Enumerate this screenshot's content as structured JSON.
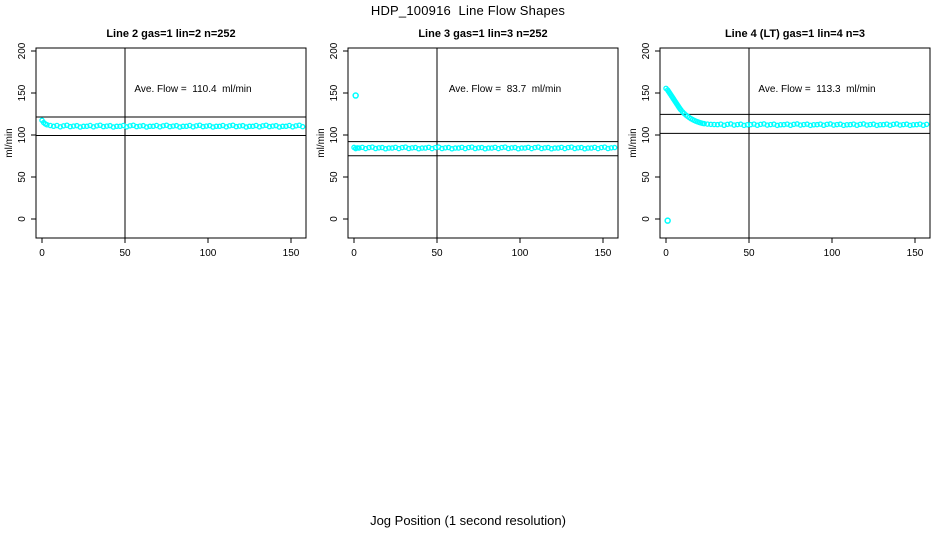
{
  "figure": {
    "title": "HDP_100916  Line Flow Shapes",
    "xlabel": "Jog Position (1 second resolution)",
    "background_color": "#FFFFFF",
    "point_color": "#00FFFF",
    "line_color": "#000000"
  },
  "chart_data": [
    {
      "type": "scatter",
      "title": "Line 2 gas=1 lin=2 n=252",
      "annotation": "Ave. Flow =  110.4  ml/min",
      "ave_flow_ml_min": 110.4,
      "n": 252,
      "ylabel": "ml/min",
      "xticks": [
        0,
        50,
        100,
        150
      ],
      "yticks": [
        0,
        50,
        100,
        150,
        200
      ],
      "xlim": [
        -4,
        159
      ],
      "ylim": [
        -23,
        204
      ],
      "grid": false,
      "vline_x": 50,
      "hlines": [
        121.4,
        99.4
      ],
      "marker": "open-circle",
      "outliers": [],
      "points": [
        [
          0,
          117.5
        ],
        [
          1,
          114.8
        ],
        [
          2,
          113.2
        ],
        [
          3,
          112.2
        ],
        [
          5,
          111.3
        ],
        [
          7,
          110.4
        ],
        [
          9,
          111.3
        ],
        [
          11,
          109.7
        ],
        [
          13,
          110.9
        ],
        [
          15,
          111.6
        ],
        [
          17,
          109.9
        ],
        [
          19,
          110.6
        ],
        [
          21,
          111.1
        ],
        [
          23,
          109.5
        ],
        [
          25,
          110.4
        ],
        [
          27,
          110.4
        ],
        [
          29,
          111.3
        ],
        [
          31,
          109.7
        ],
        [
          33,
          110.9
        ],
        [
          35,
          111.6
        ],
        [
          37,
          109.9
        ],
        [
          39,
          110.6
        ],
        [
          41,
          111.1
        ],
        [
          43,
          109.5
        ],
        [
          45,
          110.4
        ],
        [
          47,
          110.4
        ],
        [
          49,
          111.3
        ],
        [
          51,
          109.7
        ],
        [
          53,
          110.9
        ],
        [
          55,
          111.6
        ],
        [
          57,
          109.9
        ],
        [
          59,
          110.6
        ],
        [
          61,
          111.1
        ],
        [
          63,
          109.5
        ],
        [
          65,
          110.4
        ],
        [
          67,
          110.4
        ],
        [
          69,
          111.3
        ],
        [
          71,
          109.7
        ],
        [
          73,
          110.9
        ],
        [
          75,
          111.6
        ],
        [
          77,
          109.9
        ],
        [
          79,
          110.6
        ],
        [
          81,
          111.1
        ],
        [
          83,
          109.5
        ],
        [
          85,
          110.4
        ],
        [
          87,
          110.4
        ],
        [
          89,
          111.3
        ],
        [
          91,
          109.7
        ],
        [
          93,
          110.9
        ],
        [
          95,
          111.6
        ],
        [
          97,
          109.9
        ],
        [
          99,
          110.6
        ],
        [
          101,
          111.1
        ],
        [
          103,
          109.5
        ],
        [
          105,
          110.4
        ],
        [
          107,
          110.4
        ],
        [
          109,
          111.3
        ],
        [
          111,
          109.7
        ],
        [
          113,
          110.9
        ],
        [
          115,
          111.6
        ],
        [
          117,
          109.9
        ],
        [
          119,
          110.6
        ],
        [
          121,
          111.1
        ],
        [
          123,
          109.5
        ],
        [
          125,
          110.4
        ],
        [
          127,
          110.4
        ],
        [
          129,
          111.3
        ],
        [
          131,
          109.7
        ],
        [
          133,
          110.9
        ],
        [
          135,
          111.6
        ],
        [
          137,
          109.9
        ],
        [
          139,
          110.6
        ],
        [
          141,
          111.1
        ],
        [
          143,
          109.5
        ],
        [
          145,
          110.4
        ],
        [
          147,
          110.4
        ],
        [
          149,
          111.3
        ],
        [
          151,
          109.7
        ],
        [
          153,
          110.9
        ],
        [
          155,
          111.6
        ],
        [
          157,
          109.9
        ]
      ]
    },
    {
      "type": "scatter",
      "title": "Line 3 gas=1 lin=3 n=252",
      "annotation": "Ave. Flow =  83.7  ml/min",
      "ave_flow_ml_min": 83.7,
      "n": 252,
      "ylabel": "ml/min",
      "xticks": [
        0,
        50,
        100,
        150
      ],
      "yticks": [
        0,
        50,
        100,
        150,
        200
      ],
      "xlim": [
        -4,
        159
      ],
      "ylim": [
        -23,
        204
      ],
      "grid": false,
      "vline_x": 50,
      "hlines": [
        92.1,
        75.3
      ],
      "marker": "open-circle",
      "outliers": [
        [
          1,
          147
        ]
      ],
      "points": [
        [
          0,
          85.2
        ],
        [
          1,
          83.8
        ],
        [
          2,
          84.6
        ],
        [
          3,
          84.5
        ],
        [
          5,
          85.3
        ],
        [
          7,
          83.8
        ],
        [
          9,
          85.0
        ],
        [
          11,
          85.6
        ],
        [
          13,
          83.9
        ],
        [
          15,
          84.7
        ],
        [
          17,
          85.1
        ],
        [
          19,
          83.6
        ],
        [
          21,
          84.5
        ],
        [
          23,
          84.5
        ],
        [
          25,
          85.3
        ],
        [
          27,
          83.8
        ],
        [
          29,
          85.0
        ],
        [
          31,
          85.6
        ],
        [
          33,
          83.9
        ],
        [
          35,
          84.7
        ],
        [
          37,
          85.1
        ],
        [
          39,
          83.6
        ],
        [
          41,
          84.5
        ],
        [
          43,
          84.5
        ],
        [
          45,
          85.3
        ],
        [
          47,
          83.8
        ],
        [
          49,
          85.0
        ],
        [
          51,
          85.6
        ],
        [
          53,
          83.9
        ],
        [
          55,
          84.7
        ],
        [
          57,
          85.1
        ],
        [
          59,
          83.6
        ],
        [
          61,
          84.5
        ],
        [
          63,
          84.5
        ],
        [
          65,
          85.3
        ],
        [
          67,
          83.8
        ],
        [
          69,
          85.0
        ],
        [
          71,
          85.6
        ],
        [
          73,
          83.9
        ],
        [
          75,
          84.7
        ],
        [
          77,
          85.1
        ],
        [
          79,
          83.6
        ],
        [
          81,
          84.5
        ],
        [
          83,
          84.5
        ],
        [
          85,
          85.3
        ],
        [
          87,
          83.8
        ],
        [
          89,
          85.0
        ],
        [
          91,
          85.6
        ],
        [
          93,
          83.9
        ],
        [
          95,
          84.7
        ],
        [
          97,
          85.1
        ],
        [
          99,
          83.6
        ],
        [
          101,
          84.5
        ],
        [
          103,
          84.5
        ],
        [
          105,
          85.3
        ],
        [
          107,
          83.8
        ],
        [
          109,
          85.0
        ],
        [
          111,
          85.6
        ],
        [
          113,
          83.9
        ],
        [
          115,
          84.7
        ],
        [
          117,
          85.1
        ],
        [
          119,
          83.6
        ],
        [
          121,
          84.5
        ],
        [
          123,
          84.5
        ],
        [
          125,
          85.3
        ],
        [
          127,
          83.8
        ],
        [
          129,
          85.0
        ],
        [
          131,
          85.6
        ],
        [
          133,
          83.9
        ],
        [
          135,
          84.7
        ],
        [
          137,
          85.1
        ],
        [
          139,
          83.6
        ],
        [
          141,
          84.5
        ],
        [
          143,
          84.5
        ],
        [
          145,
          85.3
        ],
        [
          147,
          83.8
        ],
        [
          149,
          85.0
        ],
        [
          151,
          85.6
        ],
        [
          153,
          83.9
        ],
        [
          155,
          84.7
        ],
        [
          157,
          85.1
        ]
      ]
    },
    {
      "type": "scatter",
      "title": "Line 4 (LT) gas=1 lin=4 n=3",
      "annotation": "Ave. Flow =  113.3  ml/min",
      "ave_flow_ml_min": 113.3,
      "n": 3,
      "ylabel": "ml/min",
      "xticks": [
        0,
        50,
        100,
        150
      ],
      "yticks": [
        0,
        50,
        100,
        150,
        200
      ],
      "xlim": [
        -4,
        159
      ],
      "ylim": [
        -23,
        204
      ],
      "grid": false,
      "vline_x": 50,
      "hlines": [
        124.6,
        102.0
      ],
      "marker": "open-circle",
      "outliers": [
        [
          1,
          -2
        ]
      ],
      "points": [
        [
          0,
          155.5
        ],
        [
          1,
          153.5
        ],
        [
          1.5,
          152
        ],
        [
          2,
          150.5
        ],
        [
          2.5,
          149
        ],
        [
          3,
          147.5
        ],
        [
          3.5,
          146
        ],
        [
          4,
          144.5
        ],
        [
          4.5,
          143
        ],
        [
          5,
          141.5
        ],
        [
          5.5,
          140
        ],
        [
          6,
          138.5
        ],
        [
          6.5,
          137
        ],
        [
          7,
          135.5
        ],
        [
          7.5,
          134
        ],
        [
          8,
          132.5
        ],
        [
          8.5,
          131
        ],
        [
          9,
          129.8
        ],
        [
          10,
          127.5
        ],
        [
          11,
          125.5
        ],
        [
          12,
          123.8
        ],
        [
          13,
          122.2
        ],
        [
          14,
          120.8
        ],
        [
          15,
          119.5
        ],
        [
          16,
          118.4
        ],
        [
          17,
          117.4
        ],
        [
          18,
          116.5
        ],
        [
          19,
          115.7
        ],
        [
          20,
          115.0
        ],
        [
          21,
          114.4
        ],
        [
          22,
          113.9
        ],
        [
          23,
          113.5
        ],
        [
          25,
          113.0
        ],
        [
          27,
          112.7
        ],
        [
          29,
          112.5
        ],
        [
          31,
          112.3
        ],
        [
          33,
          113.0
        ],
        [
          35,
          111.6
        ],
        [
          37,
          112.7
        ],
        [
          39,
          113.2
        ],
        [
          41,
          111.8
        ],
        [
          43,
          112.4
        ],
        [
          45,
          112.9
        ],
        [
          47,
          111.5
        ],
        [
          49,
          112.2
        ],
        [
          51,
          112.3
        ],
        [
          53,
          113.0
        ],
        [
          55,
          111.6
        ],
        [
          57,
          112.7
        ],
        [
          59,
          113.2
        ],
        [
          61,
          111.8
        ],
        [
          63,
          112.4
        ],
        [
          65,
          112.9
        ],
        [
          67,
          111.5
        ],
        [
          69,
          112.2
        ],
        [
          71,
          112.3
        ],
        [
          73,
          113.0
        ],
        [
          75,
          111.6
        ],
        [
          77,
          112.7
        ],
        [
          79,
          113.2
        ],
        [
          81,
          111.8
        ],
        [
          83,
          112.4
        ],
        [
          85,
          112.9
        ],
        [
          87,
          111.5
        ],
        [
          89,
          112.2
        ],
        [
          91,
          112.3
        ],
        [
          93,
          113.0
        ],
        [
          95,
          111.6
        ],
        [
          97,
          112.7
        ],
        [
          99,
          113.2
        ],
        [
          101,
          111.8
        ],
        [
          103,
          112.4
        ],
        [
          105,
          112.9
        ],
        [
          107,
          111.5
        ],
        [
          109,
          112.2
        ],
        [
          111,
          112.3
        ],
        [
          113,
          113.0
        ],
        [
          115,
          111.6
        ],
        [
          117,
          112.7
        ],
        [
          119,
          113.2
        ],
        [
          121,
          111.8
        ],
        [
          123,
          112.4
        ],
        [
          125,
          112.9
        ],
        [
          127,
          111.5
        ],
        [
          129,
          112.2
        ],
        [
          131,
          112.3
        ],
        [
          133,
          113.0
        ],
        [
          135,
          111.6
        ],
        [
          137,
          112.7
        ],
        [
          139,
          113.2
        ],
        [
          141,
          111.8
        ],
        [
          143,
          112.4
        ],
        [
          145,
          112.9
        ],
        [
          147,
          111.5
        ],
        [
          149,
          112.2
        ],
        [
          151,
          112.3
        ],
        [
          153,
          113.0
        ],
        [
          155,
          111.6
        ],
        [
          157,
          112.7
        ]
      ]
    }
  ]
}
